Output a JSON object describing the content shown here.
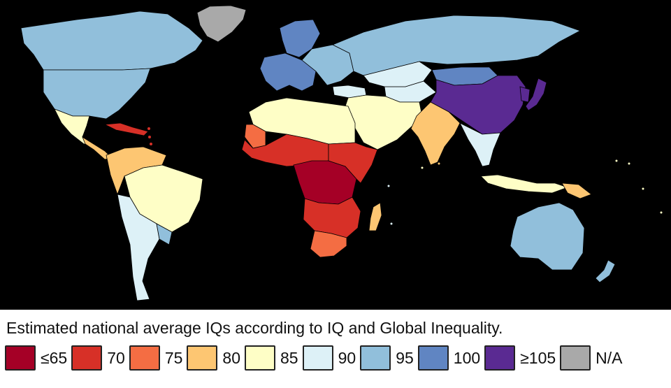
{
  "legend": {
    "caption": "Estimated national average IQs according to IQ and Global Inequality.",
    "items": [
      {
        "label": "≤65",
        "color": "#a50026"
      },
      {
        "label": "70",
        "color": "#d73027"
      },
      {
        "label": "75",
        "color": "#f46d43"
      },
      {
        "label": "80",
        "color": "#fdc672"
      },
      {
        "label": "85",
        "color": "#fefec6"
      },
      {
        "label": "90",
        "color": "#ddf1f7"
      },
      {
        "label": "95",
        "color": "#91bfdb"
      },
      {
        "label": "100",
        "color": "#6085c2"
      },
      {
        "label": "≥105",
        "color": "#5a2a92"
      },
      {
        "label": "N/A",
        "color": "#a9a9a9"
      }
    ]
  },
  "map": {
    "ocean_color": "#000000",
    "regions": [
      {
        "name": "Greenland",
        "category": "N/A"
      },
      {
        "name": "Canada",
        "category": "95"
      },
      {
        "name": "United States",
        "category": "95"
      },
      {
        "name": "Mexico",
        "category": "85"
      },
      {
        "name": "Central America",
        "category": "80"
      },
      {
        "name": "Caribbean",
        "category": "70"
      },
      {
        "name": "Northern South America",
        "category": "80"
      },
      {
        "name": "Brazil",
        "category": "85"
      },
      {
        "name": "Southern Cone",
        "category": "90"
      },
      {
        "name": "Uruguay",
        "category": "95"
      },
      {
        "name": "Scandinavia",
        "category": "100"
      },
      {
        "name": "Western Europe",
        "category": "100"
      },
      {
        "name": "Eastern Europe",
        "category": "95"
      },
      {
        "name": "Russia",
        "category": "95"
      },
      {
        "name": "Turkey",
        "category": "90"
      },
      {
        "name": "Central Asia",
        "category": "90"
      },
      {
        "name": "Kazakhstan",
        "category": "90"
      },
      {
        "name": "Mongolia",
        "category": "100"
      },
      {
        "name": "China",
        "category": "≥105"
      },
      {
        "name": "Japan",
        "category": "≥105"
      },
      {
        "name": "Korea",
        "category": "≥105"
      },
      {
        "name": "Middle East",
        "category": "85"
      },
      {
        "name": "India",
        "category": "80"
      },
      {
        "name": "Southeast Asia",
        "category": "90"
      },
      {
        "name": "Indonesia",
        "category": "85"
      },
      {
        "name": "Papua New Guinea",
        "category": "80"
      },
      {
        "name": "Australia",
        "category": "95"
      },
      {
        "name": "New Zealand",
        "category": "95"
      },
      {
        "name": "North Africa",
        "category": "85"
      },
      {
        "name": "Mauritania",
        "category": "75"
      },
      {
        "name": "West Africa",
        "category": "70"
      },
      {
        "name": "Central Africa",
        "category": "≤65"
      },
      {
        "name": "East Africa",
        "category": "70"
      },
      {
        "name": "Southern Africa",
        "category": "70"
      },
      {
        "name": "South Africa",
        "category": "75"
      },
      {
        "name": "Madagascar",
        "category": "80"
      }
    ]
  }
}
